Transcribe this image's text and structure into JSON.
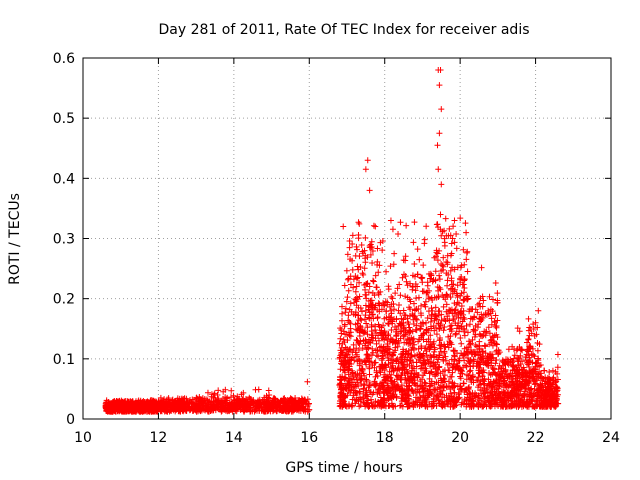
{
  "chart_data": {
    "type": "scatter",
    "title": "Day 281 of 2011, Rate Of TEC Index for receiver adis",
    "xlabel": "GPS time / hours",
    "ylabel": "ROTI / TECUs",
    "xlim": [
      10,
      24
    ],
    "ylim": [
      0,
      0.6
    ],
    "xticks": [
      10,
      12,
      14,
      16,
      18,
      20,
      22,
      24
    ],
    "yticks": [
      0,
      0.1,
      0.2,
      0.3,
      0.4,
      0.5,
      0.6
    ],
    "xtick_labels": [
      "10",
      "12",
      "14",
      "16",
      "18",
      "20",
      "22",
      "24"
    ],
    "ytick_labels": [
      "0",
      "0.1",
      "0.2",
      "0.3",
      "0.4",
      "0.5",
      "0.6"
    ],
    "grid": true,
    "marker": "+",
    "color": "#ff0000",
    "series": [
      {
        "name": "ROTI",
        "segments": [
          {
            "x_start": 10.6,
            "x_end": 12.0,
            "base": 0.012,
            "spread": 0.02
          },
          {
            "x_start": 12.0,
            "x_end": 16.0,
            "base": 0.012,
            "spread": 0.025
          },
          {
            "x_start": 16.8,
            "x_end": 22.6,
            "base": 0.02,
            "spread": 0.18
          }
        ],
        "peaks": [
          {
            "x": 17.55,
            "y": 0.43
          },
          {
            "x": 17.5,
            "y": 0.415
          },
          {
            "x": 17.6,
            "y": 0.38
          },
          {
            "x": 16.9,
            "y": 0.32
          },
          {
            "x": 17.75,
            "y": 0.32
          },
          {
            "x": 19.42,
            "y": 0.58
          },
          {
            "x": 19.48,
            "y": 0.58
          },
          {
            "x": 19.45,
            "y": 0.555
          },
          {
            "x": 19.5,
            "y": 0.515
          },
          {
            "x": 19.45,
            "y": 0.475
          },
          {
            "x": 19.4,
            "y": 0.455
          },
          {
            "x": 19.42,
            "y": 0.415
          },
          {
            "x": 19.5,
            "y": 0.39
          },
          {
            "x": 19.85,
            "y": 0.33
          },
          {
            "x": 22.0,
            "y": 0.16
          },
          {
            "x": 15.95,
            "y": 0.062
          }
        ]
      }
    ]
  }
}
